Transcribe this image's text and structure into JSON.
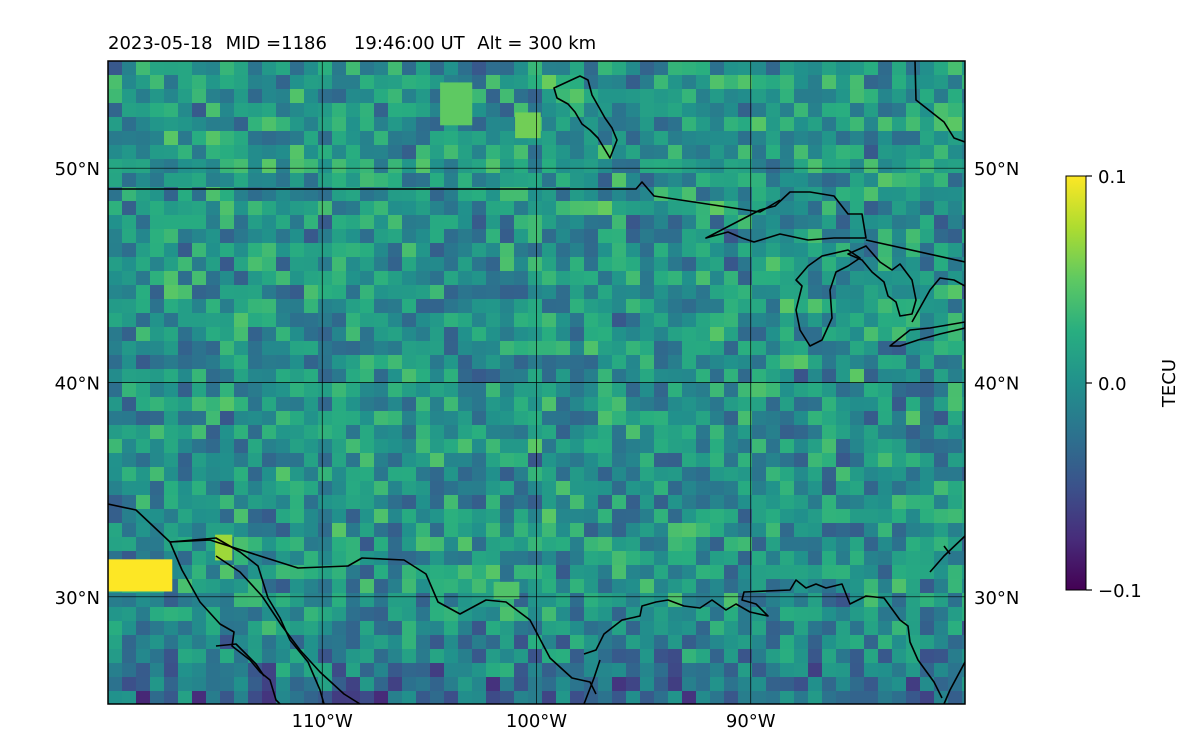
{
  "title": {
    "date": "2023-05-18",
    "mid": "MID =1186",
    "time": "19:46:00  UT",
    "alt": "Alt = 300 km"
  },
  "map": {
    "lon_range": [
      -120,
      -80
    ],
    "lat_range": [
      25,
      55
    ],
    "grid_lons": [
      -110,
      -100,
      -90
    ],
    "grid_lats": [
      30,
      40,
      50
    ],
    "lon_labels": [
      "110°W",
      "100°W",
      "90°W"
    ],
    "lat_labels": [
      "30°N",
      "40°N",
      "50°N"
    ],
    "field_colormap": "viridis",
    "coastline_color": "#000000"
  },
  "colorbar": {
    "label": "TECU",
    "ticks": [
      "0.1",
      "0.0",
      "−0.1"
    ],
    "min": -0.1,
    "max": 0.1
  }
}
